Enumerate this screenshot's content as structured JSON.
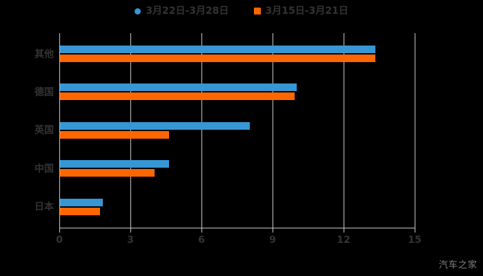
{
  "chart_data": {
    "type": "bar",
    "orientation": "horizontal",
    "title": "",
    "categories": [
      "其他",
      "德国",
      "英国",
      "中国",
      "日本"
    ],
    "series": [
      {
        "name": "3月22日-3月28日",
        "color": "#3697d4",
        "marker": "circle",
        "values": [
          13.3,
          10.0,
          8.0,
          4.6,
          1.8
        ]
      },
      {
        "name": "3月15日-3月21日",
        "color": "#ff6600",
        "marker": "square",
        "values": [
          13.3,
          9.9,
          4.6,
          4.0,
          1.7
        ]
      }
    ],
    "xticks": [
      0,
      3,
      6,
      9,
      12,
      15
    ],
    "xlim": [
      0,
      15
    ],
    "grid": true,
    "legend_position": "top"
  },
  "colors": {
    "background": "#000000",
    "text": "#333333",
    "gridline": "#c9c9c9",
    "watermark": "#828282",
    "series_blue": "#3697d4",
    "series_orange": "#ff6600"
  },
  "watermark": "汽车之家"
}
